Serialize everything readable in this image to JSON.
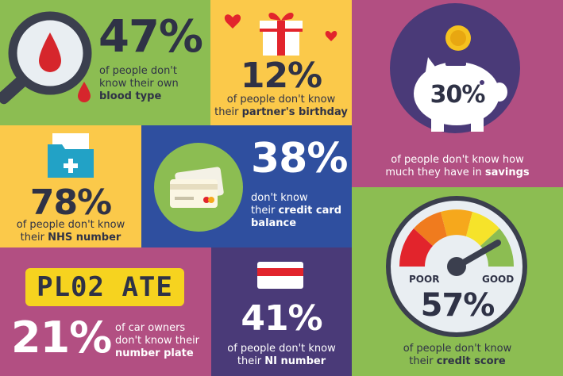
{
  "tiles": {
    "blood": {
      "pct": "47%",
      "line1": "of people don't",
      "line2": "know their own",
      "bold": "blood type",
      "color": "#8cbd52"
    },
    "birthday": {
      "pct": "12%",
      "line1": "of people don't know",
      "prefix": "their ",
      "bold": "partner's birthday",
      "color": "#fbc94a"
    },
    "savings": {
      "pct": "30%",
      "line1": "of people don't know how",
      "prefix": "much they have in ",
      "bold": "savings",
      "color": "#b24f82"
    },
    "nhs": {
      "pct": "78%",
      "line1": "of people don't know",
      "prefix": "their ",
      "bold": "NHS number",
      "color": "#fbc94a"
    },
    "credit_card": {
      "pct": "38%",
      "line1": "don't know",
      "prefix": "their ",
      "bold": "credit card",
      "bold2": "balance",
      "color": "#2f4f9f"
    },
    "credit_score": {
      "pct": "57%",
      "line1": "of people don't know",
      "prefix": "their ",
      "bold": "credit score",
      "poor": "POOR",
      "good": "GOOD",
      "color": "#8cbd52"
    },
    "plate": {
      "plate_text": "PL02 ATE",
      "pct": "21%",
      "line1": "of car owners",
      "line2": "don't know their",
      "bold": "number plate",
      "color": "#b24f82"
    },
    "ni": {
      "pct": "41%",
      "line1": "of people don't know",
      "prefix": "their ",
      "bold": "NI number",
      "color": "#4a3a78"
    }
  }
}
